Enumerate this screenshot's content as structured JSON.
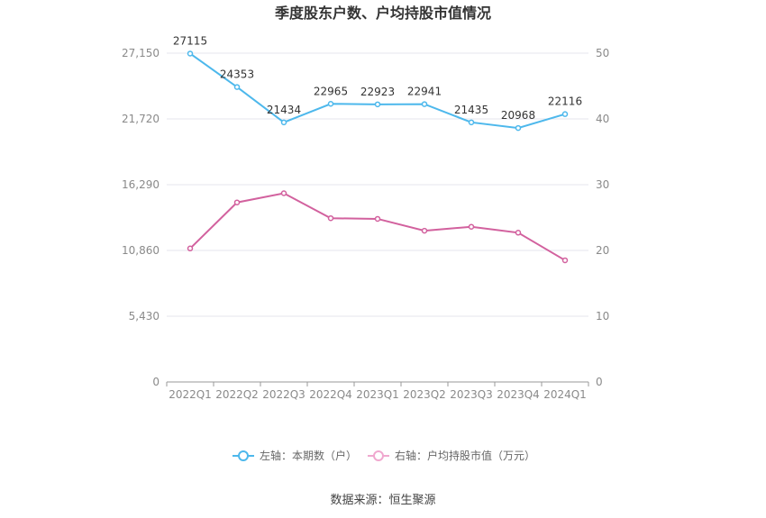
{
  "chart_data": {
    "type": "line",
    "title": "季度股东户数、户均持股市值情况",
    "categories": [
      "2022Q1",
      "2022Q2",
      "2022Q3",
      "2022Q4",
      "2023Q1",
      "2023Q2",
      "2023Q3",
      "2023Q4",
      "2024Q1"
    ],
    "left_axis": {
      "ticks": [
        "0",
        "5,430",
        "10,860",
        "16,290",
        "21,720",
        "27,150"
      ],
      "ylim": [
        0,
        27150
      ]
    },
    "right_axis": {
      "ticks": [
        "0",
        "10",
        "20",
        "30",
        "40",
        "50"
      ],
      "ylim": [
        0,
        50
      ]
    },
    "series": [
      {
        "name": "左轴：本期数（户）",
        "axis": "left",
        "color": "#4db8ec",
        "values": [
          27115,
          24353,
          21434,
          22965,
          22923,
          22941,
          21435,
          20968,
          22116
        ],
        "labels": [
          "27115",
          "24353",
          "21434",
          "22965",
          "22923",
          "22941",
          "21435",
          "20968",
          "22116"
        ]
      },
      {
        "name": "右轴：户均持股市值（万元）",
        "axis": "right",
        "color": "#d2619e",
        "values": [
          20.3,
          27.3,
          28.7,
          24.9,
          24.8,
          23.0,
          23.6,
          22.7,
          18.5
        ]
      }
    ],
    "legend_position": "bottom-center",
    "grid": true,
    "source": "数据来源：恒生聚源"
  }
}
